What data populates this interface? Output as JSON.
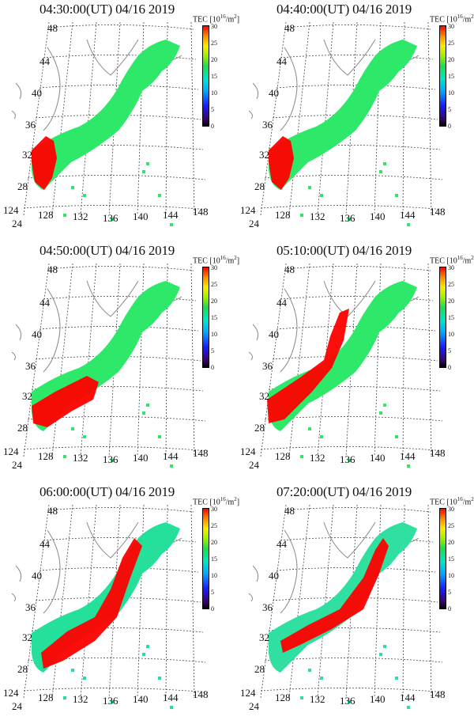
{
  "figure": {
    "colorbar": {
      "label": "TEC",
      "unit_base": "10",
      "unit_exp": "16",
      "unit_tail": "/m",
      "unit_sq": "2",
      "ticks": [
        "30",
        "25",
        "20",
        "15",
        "10",
        "5",
        "0"
      ]
    },
    "latitude_labels": [
      "48",
      "44",
      "40",
      "36",
      "32",
      "28",
      "24"
    ],
    "longitude_labels": [
      "124",
      "128",
      "132",
      "136",
      "140",
      "144",
      "148"
    ],
    "colors": {
      "low": "#000000",
      "mid": "#19e04a",
      "high": "#ff0000",
      "coast": "#888888",
      "grid": "#444444"
    },
    "panels": [
      {
        "title": "04:30:00(UT)  04/16 2019",
        "fill": "#2ee86a",
        "disturbance": "southwest"
      },
      {
        "title": "04:40:00(UT)  04/16 2019",
        "fill": "#2ee86a",
        "disturbance": "southwest"
      },
      {
        "title": "04:50:00(UT)  04/16 2019",
        "fill": "#2ee86a",
        "disturbance": "south-central"
      },
      {
        "title": "05:10:00(UT)  04/16 2019",
        "fill": "#2ee86a",
        "disturbance": "central-north"
      },
      {
        "title": "06:00:00(UT)  04/16 2019",
        "fill": "#24e09a",
        "disturbance": "central-wide"
      },
      {
        "title": "07:20:00(UT)  04/16 2019",
        "fill": "#30e0a0",
        "disturbance": "arc"
      }
    ]
  }
}
